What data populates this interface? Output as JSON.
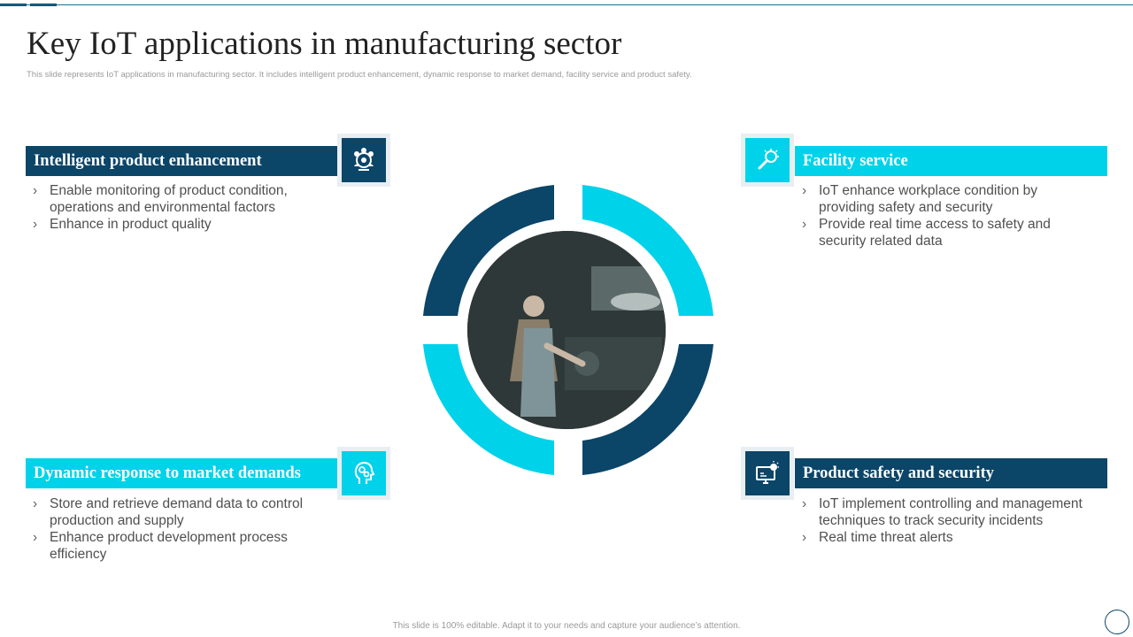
{
  "slide": {
    "title": "Key IoT applications in manufacturing sector",
    "subtitle": "This slide represents IoT applications in manufacturing sector. It includes intelligent product enhancement, dynamic response to market demand,  facility service and product safety.",
    "footer": "This slide is 100% editable. Adapt it to your needs and capture your audience’s attention."
  },
  "sections": {
    "top_left": {
      "heading": "Intelligent product enhancement",
      "icon": "team-gear-icon",
      "bullets": [
        "Enable monitoring of product condition, operations and environmental factors",
        "Enhance in product quality"
      ]
    },
    "top_right": {
      "heading": "Facility service",
      "icon": "bulb-search-icon",
      "bullets": [
        "IoT enhance workplace condition by providing safety and security",
        "Provide real time access to safety and security related data"
      ]
    },
    "bottom_left": {
      "heading": "Dynamic response to market demands",
      "icon": "head-gears-icon",
      "bullets": [
        "Store and retrieve demand data to control production and supply",
        "Enhance product development process efficiency"
      ]
    },
    "bottom_right": {
      "heading": "Product safety and security",
      "icon": "monitor-idea-icon",
      "bullets": [
        "IoT implement controlling and management techniques to track security incidents",
        "Real time threat alerts"
      ]
    }
  },
  "colors": {
    "dark": "#0b4568",
    "cyan": "#00d2ea"
  },
  "bullet_glyph": "›"
}
